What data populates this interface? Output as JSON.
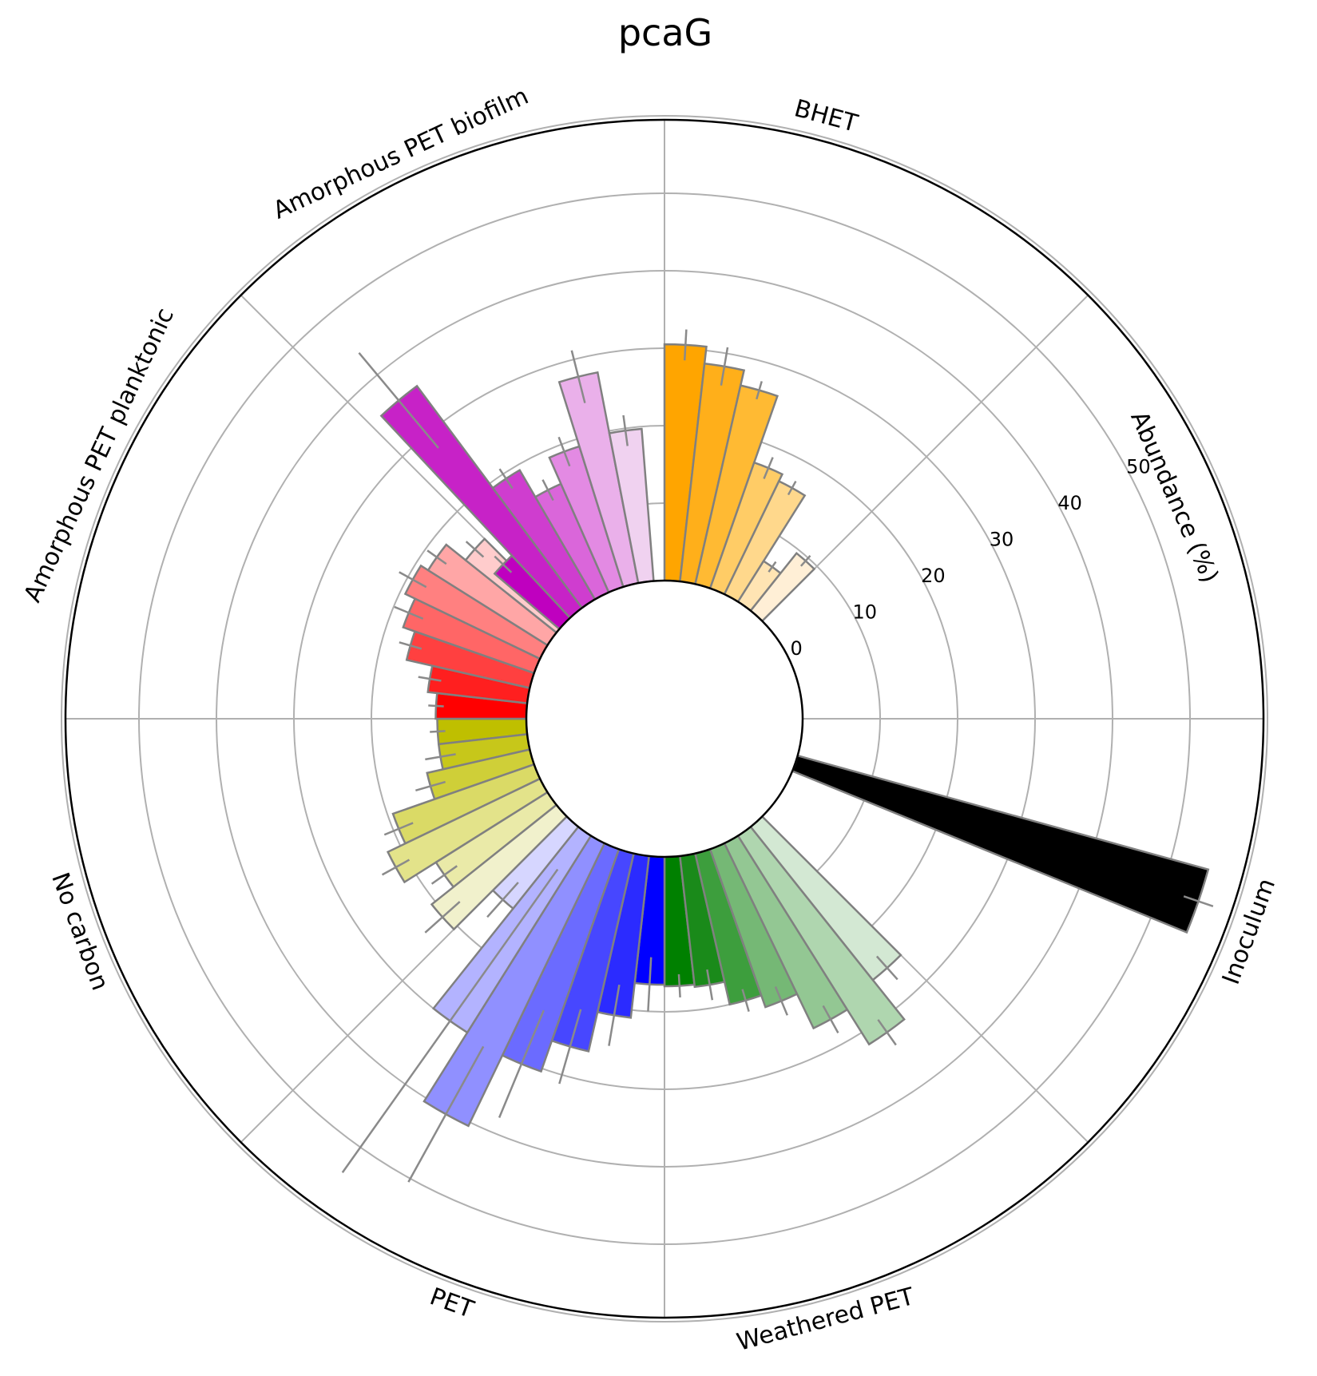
{
  "chart_data": {
    "type": "polar-bar",
    "title": "pcaG",
    "radial_axis_label": "Abundance (%)",
    "radial_ticks": [
      0,
      10,
      20,
      30,
      40,
      50
    ],
    "radial_range": [
      0,
      60
    ],
    "grid": true,
    "groups": [
      {
        "name": "BHET",
        "label_angle_deg": 15,
        "colors": [
          "#ffa500",
          "#ffaf1a",
          "#ffba33",
          "#ffcc66",
          "#ffd88c",
          "#ffe4b3",
          "#ffefd6"
        ],
        "values": [
          30.5,
          28.3,
          26.3,
          17.2,
          16.2,
          6.2,
          9.5
        ],
        "errors": [
          2.0,
          2.5,
          1.2,
          1.5,
          1.0,
          0.8,
          0.9
        ]
      },
      {
        "name": "Inoculum",
        "label_angle_deg": 110,
        "colors": [
          "#000000"
        ],
        "values": [
          55.0
        ],
        "errors": [
          2.0
        ]
      },
      {
        "name": "Weathered PET",
        "label_angle_deg": 165,
        "colors": [
          "#008000",
          "#1a8a1a",
          "#3d9e3d",
          "#75b875",
          "#93c793",
          "#afd6af",
          "#d3e8d3"
        ],
        "values": [
          16.7,
          17.0,
          20.0,
          21.6,
          26.5,
          31.8,
          25.3
        ],
        "errors": [
          1.5,
          2.0,
          1.5,
          2.0,
          2.0,
          2.0,
          2.0
        ]
      },
      {
        "name": "PET",
        "label_angle_deg": 200,
        "colors": [
          "#0000ff",
          "#2b2bff",
          "#4747ff",
          "#6b6bff",
          "#9090ff",
          "#b3b3ff",
          "#d6d6ff"
        ],
        "values": [
          16.5,
          21.0,
          26.2,
          30.4,
          40.5,
          30.0,
          13.5
        ],
        "errors": [
          3.5,
          4.0,
          5.0,
          7.5,
          10.0,
          24.0,
          3.0
        ]
      },
      {
        "name": "No carbon",
        "label_angle_deg": 250,
        "colors": [
          "#bfbf00",
          "#c7c71a",
          "#cfcf38",
          "#dada66",
          "#e3e38a",
          "#eaeaa8",
          "#f1f1cc"
        ],
        "values": [
          11.5,
          11.5,
          13.6,
          19.3,
          21.8,
          17.0,
          20.6
        ],
        "errors": [
          1.0,
          2.0,
          2.0,
          2.0,
          2.0,
          2.0,
          3.0
        ]
      },
      {
        "name": "Amorphous PET planktonic",
        "label_angle_deg": 295,
        "colors": [
          "#ff0000",
          "#ff1f1f",
          "#ff4040",
          "#ff6666",
          "#ff8080",
          "#ffa6a6",
          "#ffcccc"
        ],
        "values": [
          11.7,
          12.9,
          16.3,
          17.9,
          19.3,
          18.2,
          15.0
        ],
        "errors": [
          1.0,
          1.5,
          1.5,
          2.0,
          2.0,
          1.5,
          1.5
        ]
      },
      {
        "name": "Amorphous PET biofilm",
        "label_angle_deg": 335,
        "colors": [
          "#bf00bf",
          "#c722c7",
          "#cf3dcf",
          "#da66da",
          "#e38ae3",
          "#eab0ea",
          "#f0d2f0"
        ],
        "values": [
          11.0,
          35.7,
          19.3,
          15.3,
          19.0,
          27.7,
          19.7
        ],
        "errors": [
          1.5,
          8.0,
          1.5,
          1.5,
          2.0,
          3.5,
          2.0
        ]
      }
    ]
  }
}
